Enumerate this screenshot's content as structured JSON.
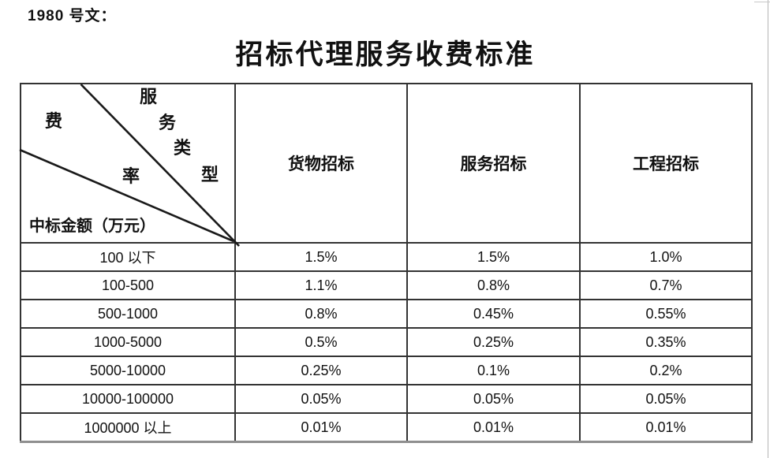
{
  "page": {
    "doc_ref": "1980 号文：",
    "title": "招标代理服务收费标准"
  },
  "table": {
    "corner": {
      "fee_chars": [
        "费",
        "率"
      ],
      "type_chars": [
        "服",
        "务",
        "类",
        "型"
      ],
      "amount_label": "中标金额（万元）"
    },
    "columns": [
      "货物招标",
      "服务招标",
      "工程招标"
    ],
    "rows": [
      {
        "amount": "100 以下",
        "values": [
          "1.5%",
          "1.5%",
          "1.0%"
        ]
      },
      {
        "amount": "100-500",
        "values": [
          "1.1%",
          "0.8%",
          "0.7%"
        ]
      },
      {
        "amount": "500-1000",
        "values": [
          "0.8%",
          "0.45%",
          "0.55%"
        ]
      },
      {
        "amount": "1000-5000",
        "values": [
          "0.5%",
          "0.25%",
          "0.35%"
        ]
      },
      {
        "amount": "5000-10000",
        "values": [
          "0.25%",
          "0.1%",
          "0.2%"
        ]
      },
      {
        "amount": "10000-100000",
        "values": [
          "0.05%",
          "0.05%",
          "0.05%"
        ]
      },
      {
        "amount": "1000000 以上",
        "values": [
          "0.01%",
          "0.01%",
          "0.01%"
        ]
      }
    ],
    "colors": {
      "border_dark": "#333333",
      "border_gray": "#8f8f8f",
      "text": "#111111"
    }
  }
}
